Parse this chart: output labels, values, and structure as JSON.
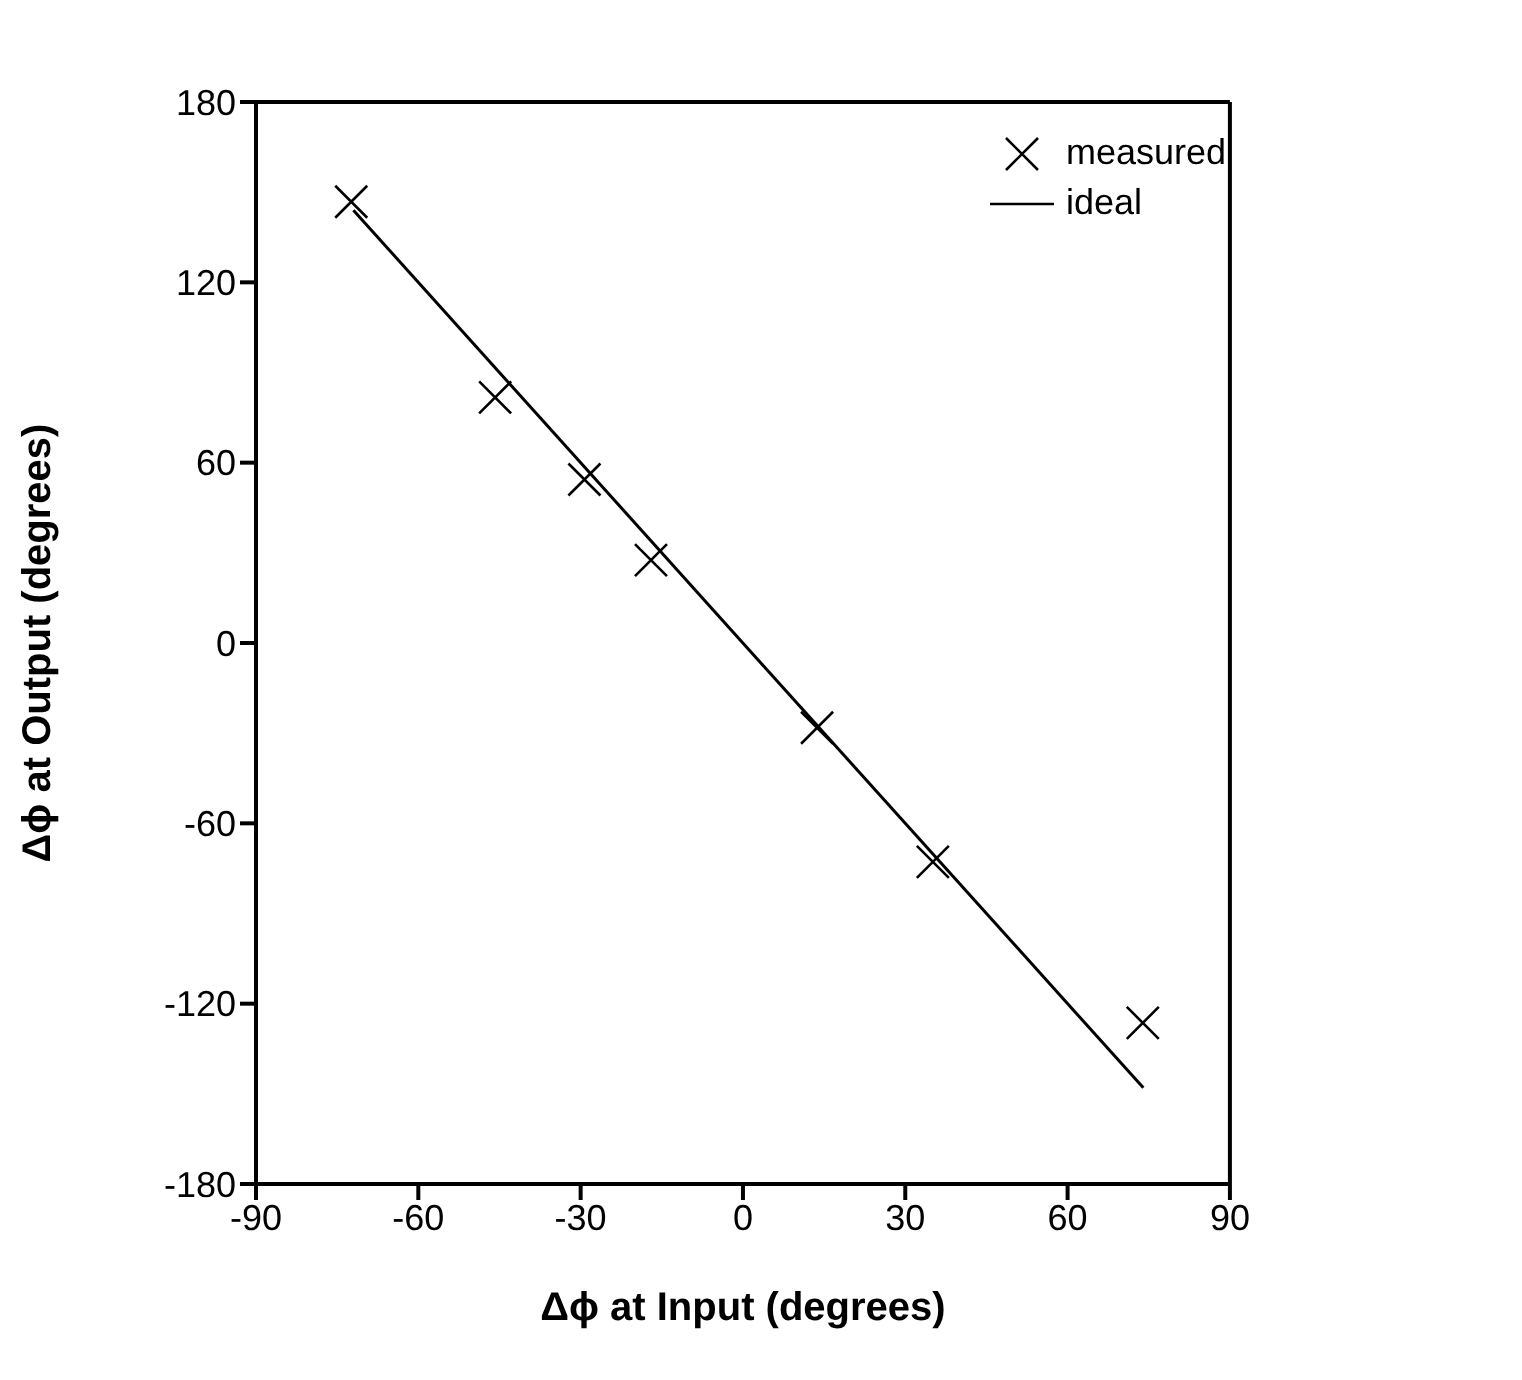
{
  "chart_data": {
    "type": "scatter",
    "xlabel": "Δϕ at Input (degrees)",
    "ylabel": "Δϕ at Output (degrees)",
    "xlim": [
      -90,
      90
    ],
    "xticks": [
      -90,
      -60,
      -30,
      0,
      30,
      60,
      90
    ],
    "ylim": [
      -180,
      180
    ],
    "yticks": [
      -180,
      -120,
      -60,
      0,
      60,
      120,
      180
    ],
    "legend": "top right",
    "series": [
      {
        "name": "measured",
        "marker": "cross",
        "color": "#000000",
        "x": [
          -72.4,
          -45.8,
          -29.3,
          -17.0,
          13.7,
          35.1,
          73.9
        ],
        "values": [
          146.8,
          81.7,
          54.4,
          27.6,
          -28.2,
          -72.8,
          -126.4
        ]
      },
      {
        "name": "ideal",
        "type": "line",
        "marker": "none",
        "line_style": "solid",
        "color": "#000000",
        "x": [
          -72,
          74
        ],
        "values": [
          144,
          -148
        ]
      }
    ]
  }
}
